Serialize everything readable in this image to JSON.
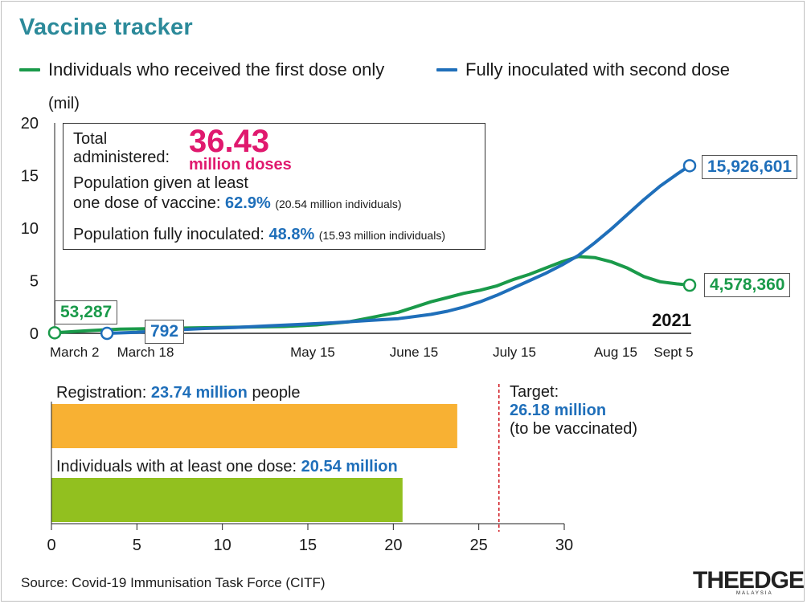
{
  "title": "Vaccine tracker",
  "legend": {
    "first_dose": "Individuals who received the first dose only",
    "fully": "Fully inoculated with second dose"
  },
  "colors": {
    "title": "#2c8a9a",
    "first_dose": "#1a9a4a",
    "fully": "#1f6fba",
    "total": "#e0196e",
    "registration_bar": "#f8b133",
    "dose_bar": "#92c01f",
    "target_line": "#d0161e"
  },
  "infobox": {
    "total_label": "Total administered:",
    "total_value": "36.43",
    "total_unit": "million doses",
    "one_dose_label_1": "Population given at least",
    "one_dose_label_2": "one dose of vaccine:",
    "one_dose_pct": "62.9%",
    "one_dose_detail": "(20.54 million individuals)",
    "fully_label": "Population fully inoculated:",
    "fully_pct": "48.8%",
    "fully_detail": "(15.93 million individuals)"
  },
  "chart_data": [
    {
      "type": "line",
      "ylabel": "(mil)",
      "ylim": [
        0,
        20
      ],
      "yticks": [
        "0",
        "5",
        "10",
        "15",
        "20"
      ],
      "year_label": "2021",
      "x_ticks": [
        {
          "label": "March 2",
          "day": 0
        },
        {
          "label": "March 18",
          "day": 16
        },
        {
          "label": "May 15",
          "day": 74
        },
        {
          "label": "June 15",
          "day": 105
        },
        {
          "label": "July 15",
          "day": 135
        },
        {
          "label": "Aug 15",
          "day": 166
        },
        {
          "label": "Sept 5",
          "day": 187
        }
      ],
      "series": [
        {
          "name": "Individuals who received the first dose only",
          "color": "#1a9a4a",
          "end_label": "4,578,360",
          "start_label": "53,287",
          "points": [
            [
              0,
              0.05
            ],
            [
              10,
              0.25
            ],
            [
              20,
              0.4
            ],
            [
              30,
              0.45
            ],
            [
              40,
              0.5
            ],
            [
              50,
              0.55
            ],
            [
              60,
              0.6
            ],
            [
              70,
              0.65
            ],
            [
              80,
              0.8
            ],
            [
              90,
              1.1
            ],
            [
              95,
              1.4
            ],
            [
              100,
              1.7
            ],
            [
              105,
              2.0
            ],
            [
              110,
              2.5
            ],
            [
              115,
              3.0
            ],
            [
              120,
              3.4
            ],
            [
              125,
              3.8
            ],
            [
              130,
              4.1
            ],
            [
              135,
              4.5
            ],
            [
              140,
              5.1
            ],
            [
              145,
              5.6
            ],
            [
              150,
              6.2
            ],
            [
              155,
              6.8
            ],
            [
              160,
              7.3
            ],
            [
              165,
              7.2
            ],
            [
              170,
              6.8
            ],
            [
              175,
              6.2
            ],
            [
              180,
              5.4
            ],
            [
              185,
              4.9
            ],
            [
              190,
              4.7
            ],
            [
              194,
              4.58
            ]
          ]
        },
        {
          "name": "Fully inoculated with second dose",
          "color": "#1f6fba",
          "end_label": "15,926,601",
          "start_label": "792",
          "points": [
            [
              16,
              0.0008
            ],
            [
              25,
              0.1
            ],
            [
              35,
              0.3
            ],
            [
              45,
              0.45
            ],
            [
              55,
              0.55
            ],
            [
              65,
              0.7
            ],
            [
              75,
              0.85
            ],
            [
              85,
              1.0
            ],
            [
              95,
              1.2
            ],
            [
              105,
              1.4
            ],
            [
              115,
              1.8
            ],
            [
              120,
              2.1
            ],
            [
              125,
              2.5
            ],
            [
              130,
              3.0
            ],
            [
              135,
              3.6
            ],
            [
              140,
              4.3
            ],
            [
              145,
              5.0
            ],
            [
              150,
              5.7
            ],
            [
              155,
              6.5
            ],
            [
              160,
              7.4
            ],
            [
              165,
              8.6
            ],
            [
              170,
              9.9
            ],
            [
              175,
              11.3
            ],
            [
              180,
              12.7
            ],
            [
              185,
              14.0
            ],
            [
              190,
              15.1
            ],
            [
              194,
              15.93
            ]
          ]
        }
      ]
    },
    {
      "type": "bar",
      "orientation": "horizontal",
      "xlim": [
        0,
        30
      ],
      "xticks": [
        "0",
        "5",
        "10",
        "15",
        "20",
        "25",
        "30"
      ],
      "bars": [
        {
          "label": "Registration:",
          "value_text": "23.74 million",
          "suffix": "people",
          "value": 23.74,
          "color": "#f8b133"
        },
        {
          "label": "Individuals with at least one dose:",
          "value_text": "20.54 million",
          "suffix": "",
          "value": 20.54,
          "color": "#92c01f"
        }
      ],
      "target": {
        "value": 26.18,
        "label": "Target:",
        "value_text": "26.18 million",
        "note": "(to be vaccinated)"
      }
    }
  ],
  "source": "Source: Covid-19 Immunisation Task Force (CITF)",
  "logo": {
    "main": "THEEDGE",
    "sub": "MALAYSIA"
  }
}
